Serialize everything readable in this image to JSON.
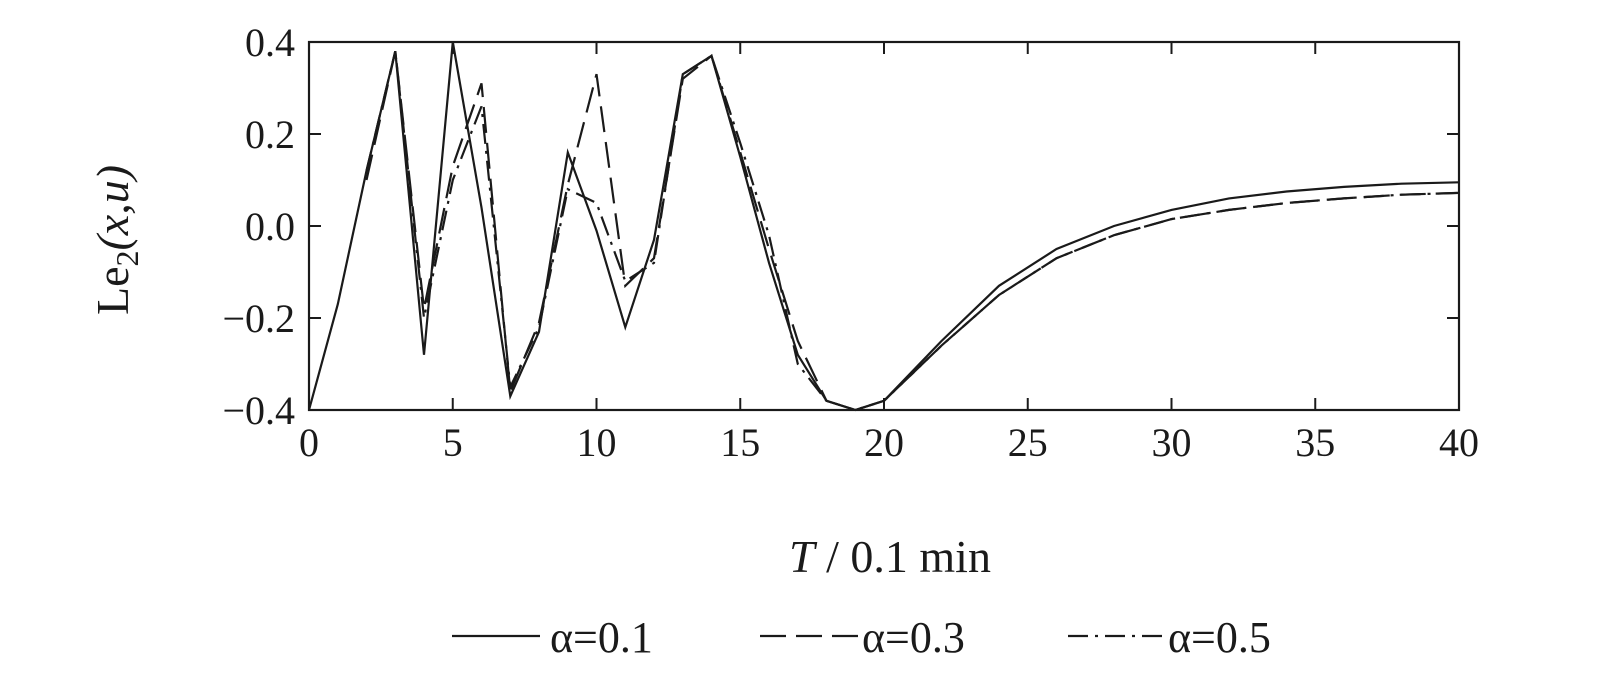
{
  "chart_data": {
    "type": "line",
    "xlabel_italic": "T",
    "xlabel_rest": " / 0.1 min",
    "ylabel_main": "Le",
    "ylabel_sub": "2",
    "ylabel_args": "(x,u)",
    "xlim": [
      0,
      40
    ],
    "ylim": [
      -0.4,
      0.4
    ],
    "xticks": [
      0,
      5,
      10,
      15,
      20,
      25,
      30,
      35,
      40
    ],
    "xtick_labels": [
      "0",
      "5",
      "10",
      "15",
      "20",
      "25",
      "30",
      "35",
      "40"
    ],
    "yticks": [
      0.4,
      0.2,
      0.0,
      -0.2,
      -0.4
    ],
    "ytick_labels": [
      "0.4",
      "0.2",
      "0.0",
      "−0.2",
      "−0.4"
    ],
    "grid": false,
    "legend_position": "bottom",
    "series": [
      {
        "name": "α=0.1",
        "dash": "solid",
        "x": [
          0,
          1,
          2,
          3,
          4,
          5,
          6,
          7,
          8,
          9,
          10,
          11,
          12,
          13,
          14,
          15,
          16,
          17,
          18,
          19,
          20,
          22,
          24,
          26,
          28,
          30,
          32,
          34,
          36,
          38,
          40
        ],
        "y": [
          -0.4,
          -0.17,
          0.12,
          0.38,
          -0.28,
          0.4,
          0.04,
          -0.37,
          -0.23,
          0.16,
          -0.01,
          -0.22,
          -0.03,
          0.33,
          0.37,
          0.15,
          -0.08,
          -0.28,
          -0.38,
          -0.4,
          -0.38,
          -0.25,
          -0.13,
          -0.05,
          0.0,
          0.035,
          0.06,
          0.075,
          0.085,
          0.092,
          0.095
        ]
      },
      {
        "name": "α=0.3",
        "dash": "long-dash",
        "x": [
          2,
          3,
          4,
          5,
          6,
          7,
          8,
          9,
          10,
          11,
          12,
          13,
          14,
          15,
          16,
          17,
          18,
          19,
          20,
          22,
          24,
          26,
          28,
          30,
          32,
          34,
          36,
          38,
          40
        ],
        "y": [
          0.1,
          0.38,
          -0.18,
          0.13,
          0.31,
          -0.36,
          -0.21,
          0.09,
          0.33,
          -0.13,
          -0.07,
          0.32,
          0.37,
          0.16,
          -0.05,
          -0.25,
          -0.38,
          -0.4,
          -0.38,
          -0.26,
          -0.15,
          -0.07,
          -0.02,
          0.015,
          0.035,
          0.05,
          0.06,
          0.068,
          0.072
        ]
      },
      {
        "name": "α=0.5",
        "dash": "dash-dot",
        "x": [
          2,
          3,
          4,
          5,
          6,
          7,
          8,
          9,
          10,
          11,
          12,
          13,
          14,
          15,
          16,
          17,
          18,
          19,
          20,
          22,
          24,
          26,
          28,
          30,
          32,
          34,
          36,
          38,
          40
        ],
        "y": [
          0.12,
          0.38,
          -0.2,
          0.1,
          0.26,
          -0.35,
          -0.22,
          0.08,
          0.05,
          -0.12,
          -0.08,
          0.33,
          0.37,
          0.18,
          -0.02,
          -0.3,
          -0.38,
          -0.4,
          -0.38,
          -0.26,
          -0.15,
          -0.07,
          -0.02,
          0.015,
          0.035,
          0.05,
          0.06,
          0.068,
          0.072
        ]
      }
    ]
  }
}
